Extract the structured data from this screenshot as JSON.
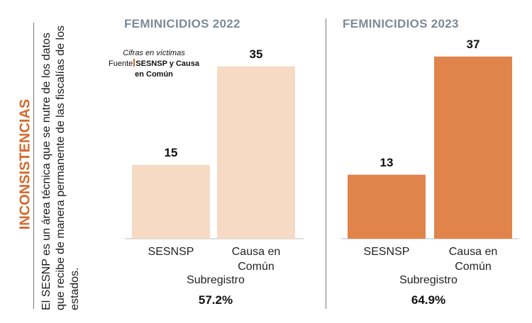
{
  "side": {
    "heading": "INCONSISTENCIAS",
    "description": "El SESNP es un área técnica que se nutre de los datos que recibe de manera permanente de las fiscalías  de los estados."
  },
  "source": {
    "note": "Cifras en víctimas",
    "label": "Fuente",
    "text": "SESNSP y Causa en Común"
  },
  "colors": {
    "accent": "#d4692d",
    "bar_2022": "#f6dac4",
    "bar_2023": "#e0844b",
    "title": "#7c8b99"
  },
  "chart_data": [
    {
      "type": "bar",
      "title": "FEMINICIDIOS 2022",
      "categories": [
        "SESNSP",
        "Causa en Común"
      ],
      "values": [
        15,
        35
      ],
      "ylim": [
        0,
        40
      ],
      "xlabel": "Subregistro",
      "subregistro": "57.2%"
    },
    {
      "type": "bar",
      "title": "FEMINICIDIOS 2023",
      "categories": [
        "SESNSP",
        "Causa en Común"
      ],
      "values": [
        13,
        37
      ],
      "ylim": [
        0,
        40
      ],
      "xlabel": "Subregistro",
      "subregistro": "64.9%"
    }
  ]
}
